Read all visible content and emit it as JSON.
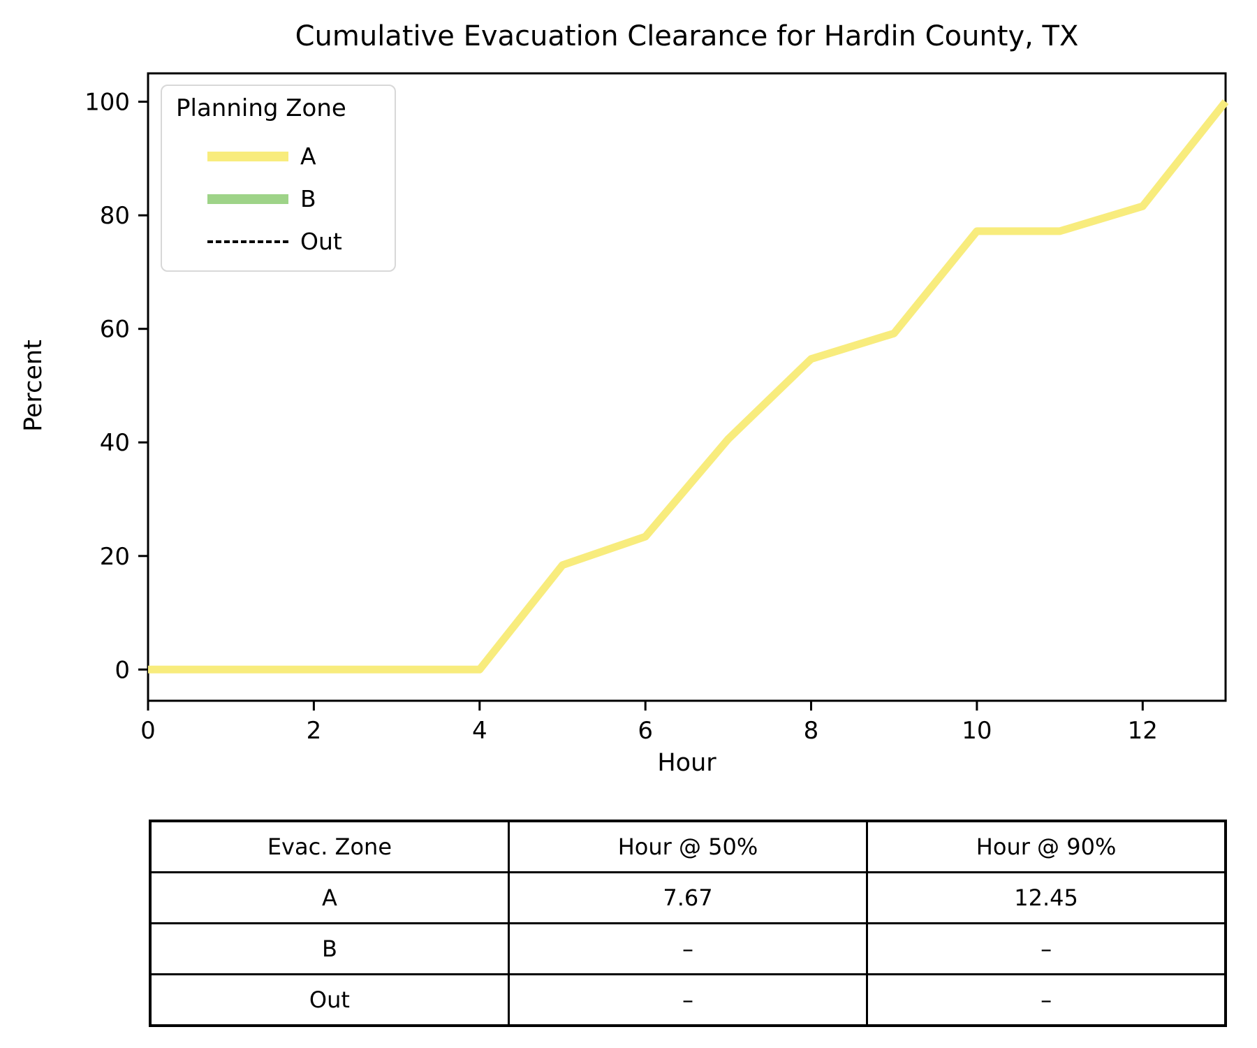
{
  "title": "Cumulative Evacuation Clearance for Hardin County, TX",
  "chart_data": {
    "type": "line",
    "title": "Cumulative Evacuation Clearance for Hardin County, TX",
    "xlabel": "Hour",
    "ylabel": "Percent",
    "xlim": [
      0,
      13
    ],
    "ylim": [
      -5.5,
      105
    ],
    "xticks": [
      0,
      2,
      4,
      6,
      8,
      10,
      12
    ],
    "yticks": [
      0,
      20,
      40,
      60,
      80,
      100
    ],
    "grid": false,
    "legend_title": "Planning Zone",
    "legend_position": "upper left",
    "x": [
      0,
      1,
      2,
      3,
      4,
      5,
      6,
      7,
      8,
      9,
      10,
      11,
      12,
      13
    ],
    "series": [
      {
        "name": "A",
        "color": "#f8ec7d",
        "style": "solid",
        "values": [
          0,
          0,
          0,
          0,
          0,
          18.4,
          23.4,
          40.6,
          54.7,
          59.2,
          77.2,
          77.2,
          81.6,
          100
        ]
      },
      {
        "name": "B",
        "color": "#9ed388",
        "style": "solid",
        "values": []
      },
      {
        "name": "Out",
        "color": "#000000",
        "style": "dashed",
        "values": []
      }
    ]
  },
  "legend": {
    "title": "Planning Zone",
    "entries": [
      {
        "label": "A",
        "color": "#f8ec7d",
        "style": "solid"
      },
      {
        "label": "B",
        "color": "#9ed388",
        "style": "solid"
      },
      {
        "label": "Out",
        "color": "#000000",
        "style": "dashed"
      }
    ]
  },
  "table": {
    "headers": [
      "Evac. Zone",
      "Hour @ 50%",
      "Hour @ 90%"
    ],
    "rows": [
      [
        "A",
        "7.67",
        "12.45"
      ],
      [
        "B",
        "–",
        "–"
      ],
      [
        "Out",
        "–",
        "–"
      ]
    ]
  }
}
